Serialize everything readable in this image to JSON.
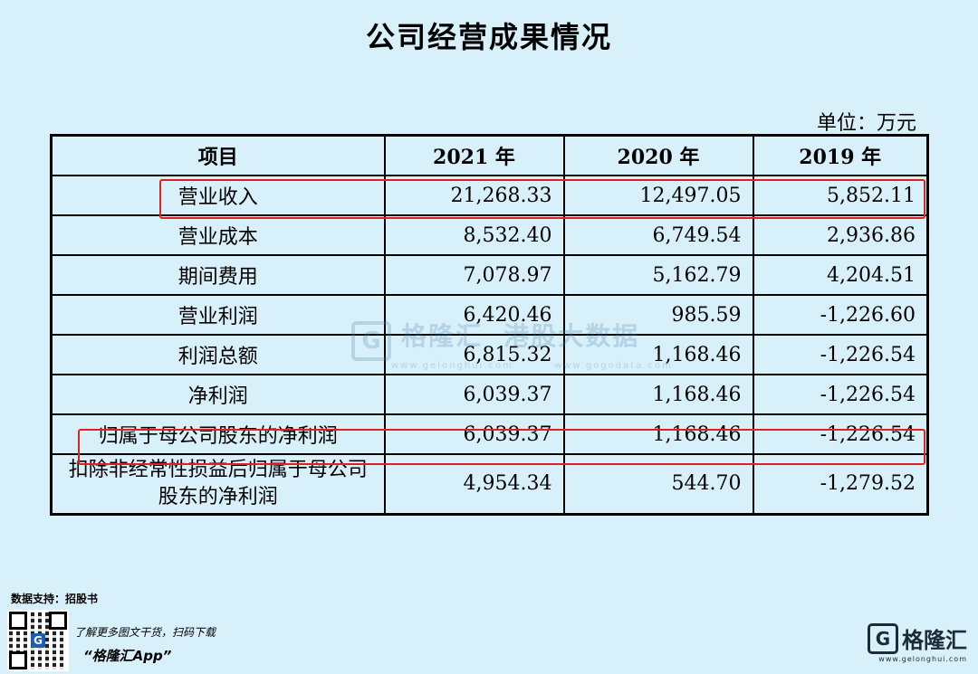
{
  "title": "公司经营成果情况",
  "unit": "单位：万元",
  "chart_data": {
    "type": "table",
    "columns": [
      "项目",
      "2021 年",
      "2020 年",
      "2019 年"
    ],
    "rows": [
      {
        "item": "营业收入",
        "v2021": "21,268.33",
        "v2020": "12,497.05",
        "v2019": "5,852.11"
      },
      {
        "item": "营业成本",
        "v2021": "8,532.40",
        "v2020": "6,749.54",
        "v2019": "2,936.86"
      },
      {
        "item": "期间费用",
        "v2021": "7,078.97",
        "v2020": "5,162.79",
        "v2019": "4,204.51"
      },
      {
        "item": "营业利润",
        "v2021": "6,420.46",
        "v2020": "985.59",
        "v2019": "-1,226.60"
      },
      {
        "item": "利润总额",
        "v2021": "6,815.32",
        "v2020": "1,168.46",
        "v2019": "-1,226.54"
      },
      {
        "item": "净利润",
        "v2021": "6,039.37",
        "v2020": "1,168.46",
        "v2019": "-1,226.54"
      },
      {
        "item": "归属于母公司股东的净利润",
        "v2021": "6,039.37",
        "v2020": "1,168.46",
        "v2019": "-1,226.54"
      },
      {
        "item": "扣除非经常性损益后归属于母公司股东的净利润",
        "v2021": "4,954.34",
        "v2020": "544.70",
        "v2019": "-1,279.52"
      }
    ],
    "highlighted_rows": [
      "营业收入",
      "归属于母公司股东的净利润"
    ],
    "highlight_color": "#e02020"
  },
  "watermark": {
    "brand": "格隆汇",
    "sub": "港股大数据",
    "url": "www.gelonghui.com",
    "url2": "www.gogodata.com"
  },
  "footer": {
    "source": "数据支持：招股书",
    "promo_line": "了解更多图文干货，扫码下载",
    "app_name": "“格隆汇App”",
    "brand_name": "格隆汇",
    "brand_url": "www.gelonghui.com"
  },
  "colors": {
    "background": "#d8f0fa",
    "border": "#000000",
    "highlight": "#e02020"
  }
}
